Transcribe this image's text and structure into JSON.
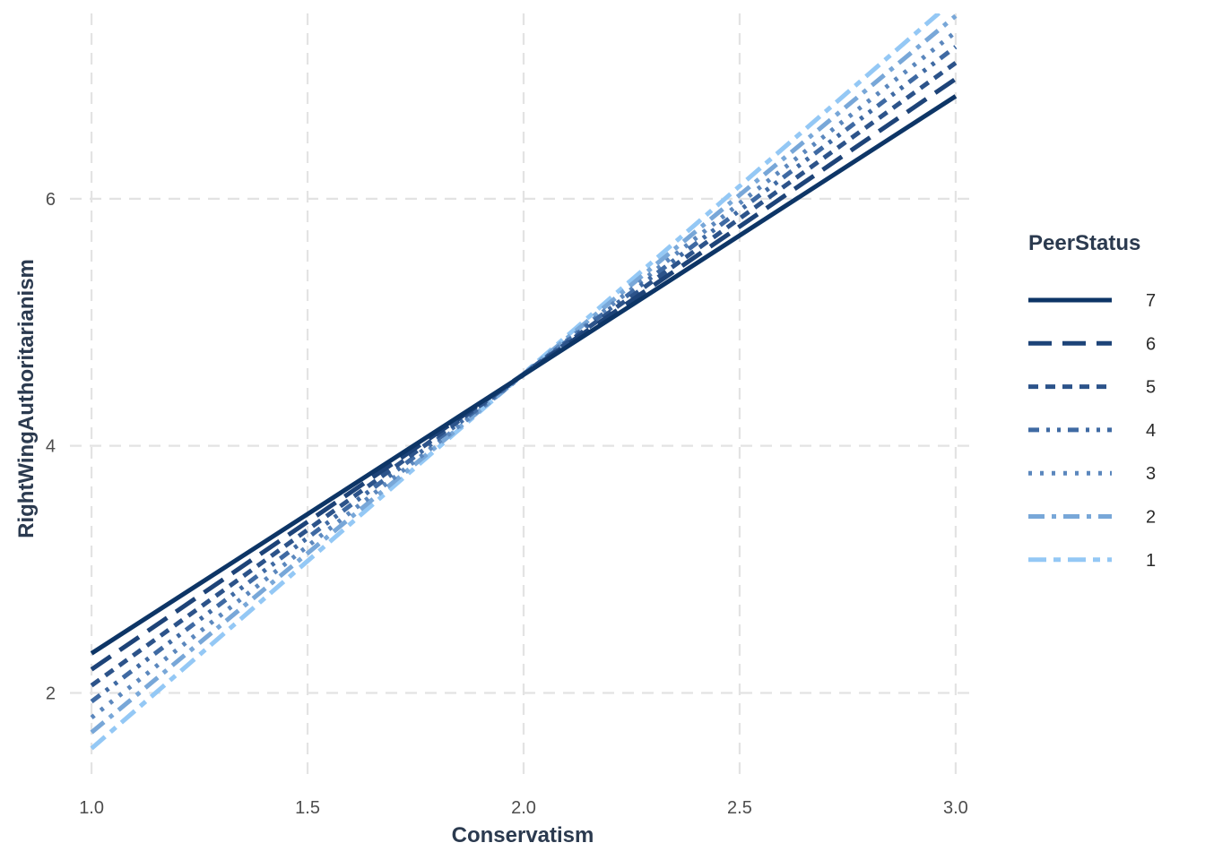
{
  "chart_data": {
    "type": "line",
    "xlabel": "Conservatism",
    "ylabel": "RightWingAuthoritarianism",
    "xlim": [
      0.95,
      3.05
    ],
    "ylim": [
      1.3,
      7.5
    ],
    "x_ticks": [
      1.0,
      1.5,
      2.0,
      2.5,
      3.0
    ],
    "x_tick_labels": [
      "1.0",
      "1.5",
      "2.0",
      "2.5",
      "3.0"
    ],
    "y_ticks": [
      2,
      4,
      6
    ],
    "y_tick_labels": [
      "2",
      "4",
      "6"
    ],
    "grid": true,
    "legend": {
      "title": "PeerStatus",
      "placement": "right"
    },
    "series": [
      {
        "name": "7",
        "x": [
          1.0,
          3.0
        ],
        "y": [
          2.32,
          6.83
        ],
        "color": "#0d3566",
        "dash": "solid"
      },
      {
        "name": "6",
        "x": [
          1.0,
          3.0
        ],
        "y": [
          2.19,
          6.97
        ],
        "color": "#1d4378",
        "dash": "longdash"
      },
      {
        "name": "5",
        "x": [
          1.0,
          3.0
        ],
        "y": [
          2.06,
          7.1
        ],
        "color": "#2c538a",
        "dash": "dashed"
      },
      {
        "name": "4",
        "x": [
          1.0,
          3.0
        ],
        "y": [
          1.93,
          7.23
        ],
        "color": "#3f6aa3",
        "dash": "dotdash2"
      },
      {
        "name": "3",
        "x": [
          1.0,
          3.0
        ],
        "y": [
          1.8,
          7.35
        ],
        "color": "#5b87bd",
        "dash": "dotted"
      },
      {
        "name": "2",
        "x": [
          1.0,
          3.0
        ],
        "y": [
          1.68,
          7.48
        ],
        "color": "#78a7d8",
        "dash": "dashdot"
      },
      {
        "name": "1",
        "x": [
          1.0,
          3.0
        ],
        "y": [
          1.55,
          7.62
        ],
        "color": "#94c8f5",
        "dash": "twodash"
      }
    ]
  }
}
